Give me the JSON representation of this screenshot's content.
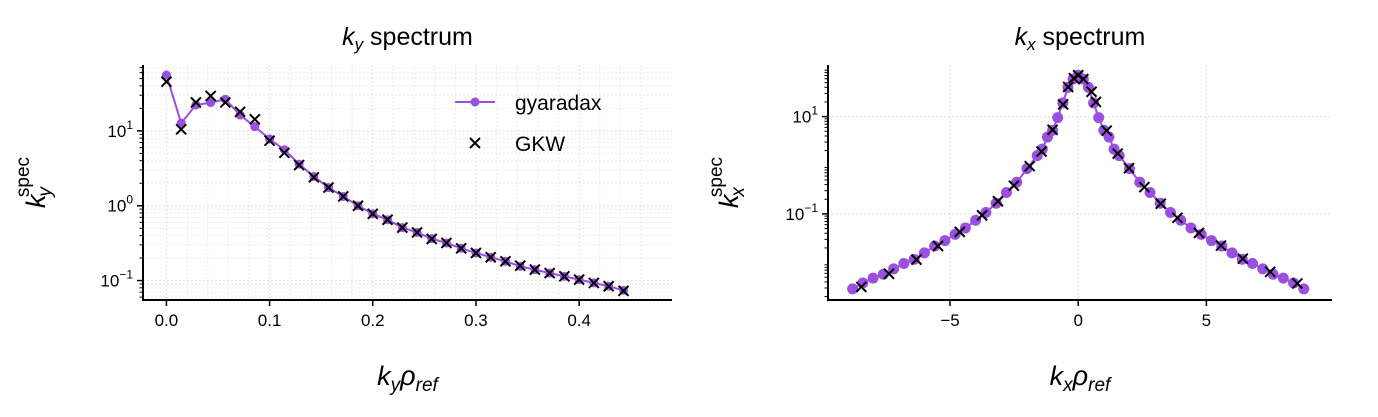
{
  "colors": {
    "gyaradax": "#9b4fe0",
    "gkw": "#000000",
    "grid": "#dddddd"
  },
  "chart_data": [
    {
      "type": "line",
      "title": {
        "main": "k",
        "sub": "y",
        "rest": " spectrum"
      },
      "xlabel": {
        "main": "k",
        "sub": "y",
        "mid": "ρ",
        "sub2": "ref"
      },
      "ylabel": {
        "main": "k",
        "sub": "y",
        "sup": "spec"
      },
      "xscale": "linear",
      "yscale": "log",
      "xlim": [
        -0.0227,
        0.49
      ],
      "ylim": [
        0.055,
        76
      ],
      "xticks": [
        0.0,
        0.1,
        0.2,
        0.3,
        0.4
      ],
      "xtick_labels": [
        "0.0",
        "0.1",
        "0.2",
        "0.3",
        "0.4"
      ],
      "yticks": [
        10,
        1,
        0.1
      ],
      "ytick_labels": [
        {
          "base": "10",
          "exp": "1"
        },
        {
          "base": "10",
          "exp": "0"
        },
        {
          "base": "10",
          "exp": "−1"
        }
      ],
      "grid": "major and minor, dotted",
      "legend": {
        "placement": "upper-right",
        "entries": [
          "gyaradax",
          "GKW"
        ]
      },
      "series": [
        {
          "name": "gyaradax",
          "style": "line-with-circle-markers",
          "x": [
            0.0,
            0.0143,
            0.0286,
            0.0429,
            0.0571,
            0.0714,
            0.0857,
            0.1,
            0.1143,
            0.1286,
            0.1429,
            0.1571,
            0.1714,
            0.1857,
            0.2,
            0.2143,
            0.2286,
            0.2429,
            0.2571,
            0.2714,
            0.2857,
            0.3,
            0.3143,
            0.3286,
            0.3429,
            0.3571,
            0.3714,
            0.3857,
            0.4,
            0.4143,
            0.4286,
            0.443
          ],
          "y": [
            55.8,
            12.7,
            22.2,
            23.9,
            26.5,
            16.3,
            11.4,
            7.8,
            5.6,
            3.6,
            2.46,
            1.75,
            1.33,
            1.0,
            0.78,
            0.65,
            0.51,
            0.44,
            0.363,
            0.318,
            0.27,
            0.234,
            0.205,
            0.181,
            0.155,
            0.14,
            0.126,
            0.114,
            0.103,
            0.093,
            0.084,
            0.074
          ]
        },
        {
          "name": "GKW",
          "style": "x-markers",
          "x": [
            0.0,
            0.0143,
            0.0286,
            0.0429,
            0.0571,
            0.0714,
            0.0857,
            0.1,
            0.1143,
            0.1286,
            0.1429,
            0.1571,
            0.1714,
            0.1857,
            0.2,
            0.2143,
            0.2286,
            0.2429,
            0.2571,
            0.2714,
            0.2857,
            0.3,
            0.3143,
            0.3286,
            0.3429,
            0.3571,
            0.3714,
            0.3857,
            0.4,
            0.4143,
            0.4286,
            0.443
          ],
          "y": [
            45.5,
            10.5,
            24.0,
            29.3,
            24.0,
            18.0,
            14.3,
            7.4,
            5.1,
            3.5,
            2.4,
            1.75,
            1.33,
            1.0,
            0.78,
            0.65,
            0.51,
            0.44,
            0.36,
            0.318,
            0.27,
            0.234,
            0.205,
            0.181,
            0.158,
            0.14,
            0.126,
            0.114,
            0.103,
            0.093,
            0.084,
            0.073
          ]
        }
      ]
    },
    {
      "type": "line",
      "title": {
        "main": "k",
        "sub": "x",
        "rest": " spectrum"
      },
      "xlabel": {
        "main": "k",
        "sub": "x",
        "mid": "ρ",
        "sub2": "ref"
      },
      "ylabel": {
        "main": "k",
        "sub": "x",
        "sup": "spec"
      },
      "xscale": "linear",
      "yscale": "log",
      "xlim": [
        -9.76,
        9.9
      ],
      "ylim": [
        0.0017,
        115
      ],
      "xticks": [
        -5,
        0,
        5
      ],
      "xtick_labels": [
        "−5",
        "0",
        "5"
      ],
      "yticks": [
        10,
        0.1
      ],
      "ytick_labels": [
        {
          "base": "10",
          "exp": "1"
        },
        {
          "base": "10",
          "exp": "−1"
        }
      ],
      "grid": "major, dotted",
      "series": [
        {
          "name": "gyaradax",
          "style": "line-with-circle-markers",
          "x": [
            -8.8,
            -8.4,
            -8.0,
            -7.6,
            -7.2,
            -6.8,
            -6.4,
            -6.0,
            -5.6,
            -5.2,
            -4.8,
            -4.4,
            -4.0,
            -3.6,
            -3.2,
            -2.8,
            -2.4,
            -2.0,
            -1.6,
            -1.4,
            -1.2,
            -1.0,
            -0.8,
            -0.6,
            -0.4,
            -0.2,
            0.0,
            0.2,
            0.4,
            0.6,
            0.8,
            1.0,
            1.2,
            1.4,
            1.6,
            2.0,
            2.4,
            2.8,
            3.2,
            3.6,
            4.0,
            4.4,
            4.8,
            5.2,
            5.6,
            6.0,
            6.4,
            6.8,
            7.2,
            7.6,
            8.0,
            8.4,
            8.8
          ],
          "y": [
            0.00288,
            0.0038,
            0.00479,
            0.00575,
            0.00741,
            0.00955,
            0.0117,
            0.0158,
            0.0219,
            0.0282,
            0.038,
            0.0513,
            0.0741,
            0.107,
            0.166,
            0.275,
            0.447,
            0.851,
            1.58,
            2.14,
            3.8,
            5.25,
            9.55,
            19.1,
            39.8,
            58.9,
            70.8,
            58.9,
            39.8,
            19.1,
            9.55,
            5.25,
            3.8,
            2.14,
            1.58,
            0.851,
            0.447,
            0.275,
            0.166,
            0.107,
            0.0741,
            0.0513,
            0.038,
            0.0282,
            0.0219,
            0.0158,
            0.0117,
            0.00955,
            0.00741,
            0.00575,
            0.00479,
            0.0038,
            0.00288
          ]
        },
        {
          "name": "GKW",
          "style": "x-markers",
          "x": [
            -8.46,
            -7.38,
            -6.31,
            -5.47,
            -4.62,
            -3.75,
            -3.13,
            -2.51,
            -1.89,
            -1.43,
            -1.0,
            -0.59,
            -0.39,
            -0.17,
            0.0,
            0.2,
            0.52,
            0.69,
            1.11,
            1.54,
            1.98,
            2.58,
            3.22,
            3.87,
            4.71,
            5.57,
            6.42,
            7.49,
            8.55
          ],
          "y": [
            0.00316,
            0.00589,
            0.0115,
            0.0219,
            0.0427,
            0.0933,
            0.182,
            0.38,
            0.955,
            1.91,
            5.37,
            17.8,
            40.7,
            61.7,
            70.8,
            58.9,
            32.4,
            20.0,
            5.13,
            1.74,
            0.871,
            0.355,
            0.162,
            0.0832,
            0.0407,
            0.0224,
            0.012,
            0.00646,
            0.00372
          ]
        }
      ]
    }
  ]
}
